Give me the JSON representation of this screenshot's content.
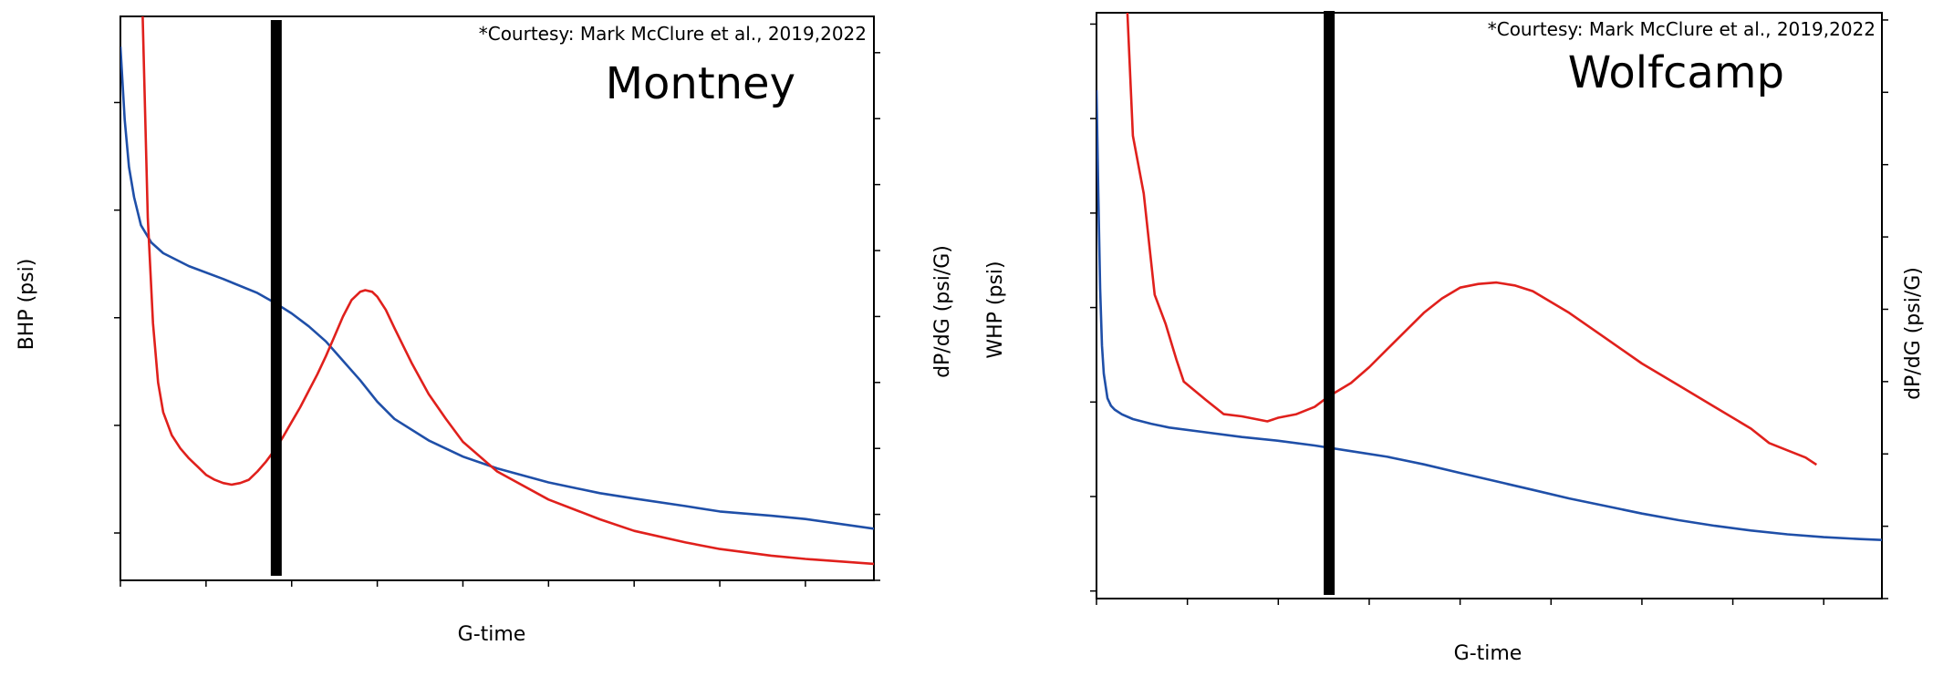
{
  "chart_data": [
    {
      "type": "line",
      "title": "Montney",
      "annotation": "*Courtesy: Mark McClure et al., 2019,2022",
      "xlabel": "G-time",
      "ylabel": "BHP (psi)",
      "y2label": "dP/dG (psi/G)",
      "xlim": [
        0,
        44
      ],
      "ylim": [
        5780,
        8400
      ],
      "y2lim": [
        0,
        171
      ],
      "x_ticks": [
        0,
        5,
        10,
        15,
        20,
        25,
        30,
        35,
        40
      ],
      "y_ticks": [
        6000,
        6500,
        7000,
        7500,
        8000
      ],
      "y2_ticks": [
        0,
        20,
        40,
        60,
        80,
        100,
        120,
        140,
        160
      ],
      "grid": false,
      "vertical_marker_x": 9.1,
      "series": [
        {
          "axis": "left",
          "color": "#1f4fa8",
          "x": [
            0,
            0.25,
            0.5,
            0.8,
            1.2,
            1.8,
            2.5,
            4,
            6,
            8,
            9,
            10,
            11,
            12,
            13,
            14,
            15,
            16,
            18,
            20,
            22,
            25,
            28,
            30,
            33,
            35,
            38,
            40,
            44
          ],
          "values": [
            8260,
            7920,
            7700,
            7560,
            7430,
            7350,
            7300,
            7240,
            7180,
            7115,
            7070,
            7020,
            6960,
            6890,
            6800,
            6710,
            6610,
            6530,
            6430,
            6355,
            6300,
            6235,
            6185,
            6160,
            6125,
            6100,
            6080,
            6065,
            6020
          ]
        },
        {
          "axis": "right",
          "color": "#e0201c",
          "x": [
            1.3,
            1.6,
            1.9,
            2.2,
            2.5,
            3,
            3.5,
            4,
            4.5,
            5,
            5.5,
            6,
            6.5,
            7,
            7.5,
            8,
            8.5,
            9,
            9.5,
            10,
            10.5,
            11,
            11.5,
            12,
            12.5,
            13,
            13.5,
            14,
            14.3,
            14.7,
            15,
            15.5,
            16,
            17,
            18,
            19,
            20,
            22,
            25,
            28,
            30,
            33,
            35,
            38,
            40,
            44
          ],
          "values": [
            171,
            110,
            78,
            60,
            51,
            44,
            40,
            37,
            34.5,
            32,
            30.5,
            29.5,
            29,
            29.5,
            30.5,
            33,
            36,
            39.5,
            43.5,
            48,
            52.5,
            57.5,
            62.5,
            68,
            74,
            80,
            85,
            87.5,
            88,
            87.5,
            86,
            82,
            76.5,
            66,
            56.5,
            49,
            42,
            33,
            24.5,
            18.5,
            15,
            11.5,
            9.5,
            7.5,
            6.5,
            5
          ]
        }
      ]
    },
    {
      "type": "line",
      "title": "Wolfcamp",
      "annotation": "*Courtesy: Mark McClure et al., 2019,2022",
      "xlabel": "G-time",
      "ylabel": "WHP (psi)",
      "y2label": "dP/dG (psi/G)",
      "xlim": [
        0,
        216
      ],
      "ylim": [
        1960,
        5060
      ],
      "y2lim": [
        0,
        8.1
      ],
      "x_ticks": [
        0,
        25,
        50,
        75,
        100,
        125,
        150,
        175,
        200
      ],
      "y_ticks": [
        2000,
        2500,
        3000,
        3500,
        4000,
        4500,
        5000
      ],
      "y2_ticks": [
        0,
        1,
        2,
        3,
        4,
        5,
        6,
        7,
        8
      ],
      "grid": false,
      "vertical_marker_x": 64,
      "series": [
        {
          "axis": "left",
          "color": "#1f4fa8",
          "x": [
            0,
            0.5,
            1,
            1.5,
            2,
            3,
            4,
            5,
            7,
            10,
            15,
            20,
            30,
            40,
            50,
            60,
            70,
            80,
            90,
            100,
            110,
            120,
            130,
            140,
            150,
            160,
            170,
            180,
            190,
            200,
            210,
            216
          ],
          "values": [
            4650,
            4100,
            3600,
            3300,
            3150,
            3020,
            2980,
            2960,
            2935,
            2910,
            2885,
            2865,
            2840,
            2815,
            2795,
            2770,
            2740,
            2710,
            2670,
            2625,
            2580,
            2535,
            2490,
            2450,
            2410,
            2375,
            2345,
            2320,
            2300,
            2285,
            2275,
            2270
          ]
        },
        {
          "axis": "right",
          "color": "#e0201c",
          "x": [
            8.5,
            10,
            13,
            16,
            19,
            22,
            24,
            30,
            35,
            40,
            47,
            50,
            55,
            60,
            64,
            70,
            75,
            80,
            85,
            90,
            95,
            100,
            105,
            110,
            115,
            120,
            130,
            140,
            150,
            160,
            170,
            180,
            185,
            190,
            195,
            198
          ],
          "values": [
            8.1,
            6.4,
            5.6,
            4.2,
            3.8,
            3.3,
            3.0,
            2.75,
            2.55,
            2.52,
            2.45,
            2.5,
            2.55,
            2.65,
            2.8,
            2.98,
            3.2,
            3.45,
            3.7,
            3.95,
            4.15,
            4.3,
            4.35,
            4.37,
            4.33,
            4.25,
            3.95,
            3.6,
            3.25,
            2.95,
            2.65,
            2.35,
            2.15,
            2.05,
            1.95,
            1.85
          ]
        }
      ]
    }
  ]
}
